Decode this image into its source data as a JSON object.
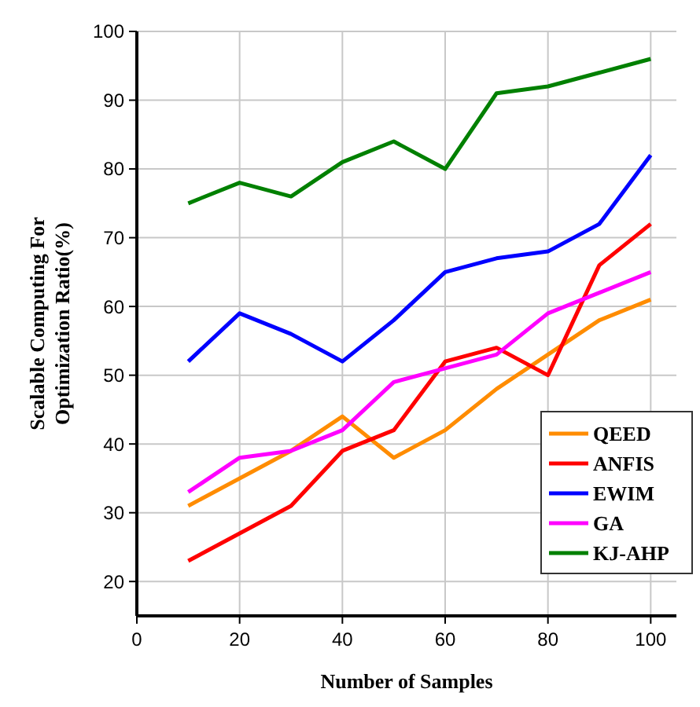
{
  "chart_data": {
    "type": "line",
    "xlabel": "Number of Samples",
    "ylabel": "Scalable Computing For Optimization Ratio(%)",
    "x": [
      10,
      20,
      30,
      40,
      50,
      60,
      70,
      80,
      90,
      100
    ],
    "xlim": [
      0,
      105
    ],
    "xticks": [
      0,
      20,
      40,
      60,
      80,
      100
    ],
    "ylim": [
      15,
      100
    ],
    "yticks": [
      20,
      30,
      40,
      50,
      60,
      70,
      80,
      90,
      100
    ],
    "grid": true,
    "legend": "bottom right",
    "marker": "none",
    "line_style": "solid",
    "series": [
      {
        "name": "QEED",
        "color": "#ff8c00",
        "values": [
          31,
          35,
          39,
          44,
          38,
          42,
          48,
          53,
          58,
          61
        ]
      },
      {
        "name": "ANFIS",
        "color": "#ff0000",
        "values": [
          23,
          27,
          31,
          39,
          42,
          52,
          54,
          50,
          66,
          72
        ]
      },
      {
        "name": "EWIM",
        "color": "#0000ff",
        "values": [
          52,
          59,
          56,
          52,
          58,
          65,
          67,
          68,
          72,
          82
        ]
      },
      {
        "name": "GA",
        "color": "#ff00ff",
        "values": [
          33,
          38,
          39,
          42,
          49,
          51,
          53,
          59,
          62,
          65
        ]
      },
      {
        "name": "KJ-AHP",
        "color": "#008000",
        "values": [
          75,
          78,
          76,
          81,
          84,
          80,
          91,
          92,
          94,
          96
        ]
      }
    ]
  }
}
